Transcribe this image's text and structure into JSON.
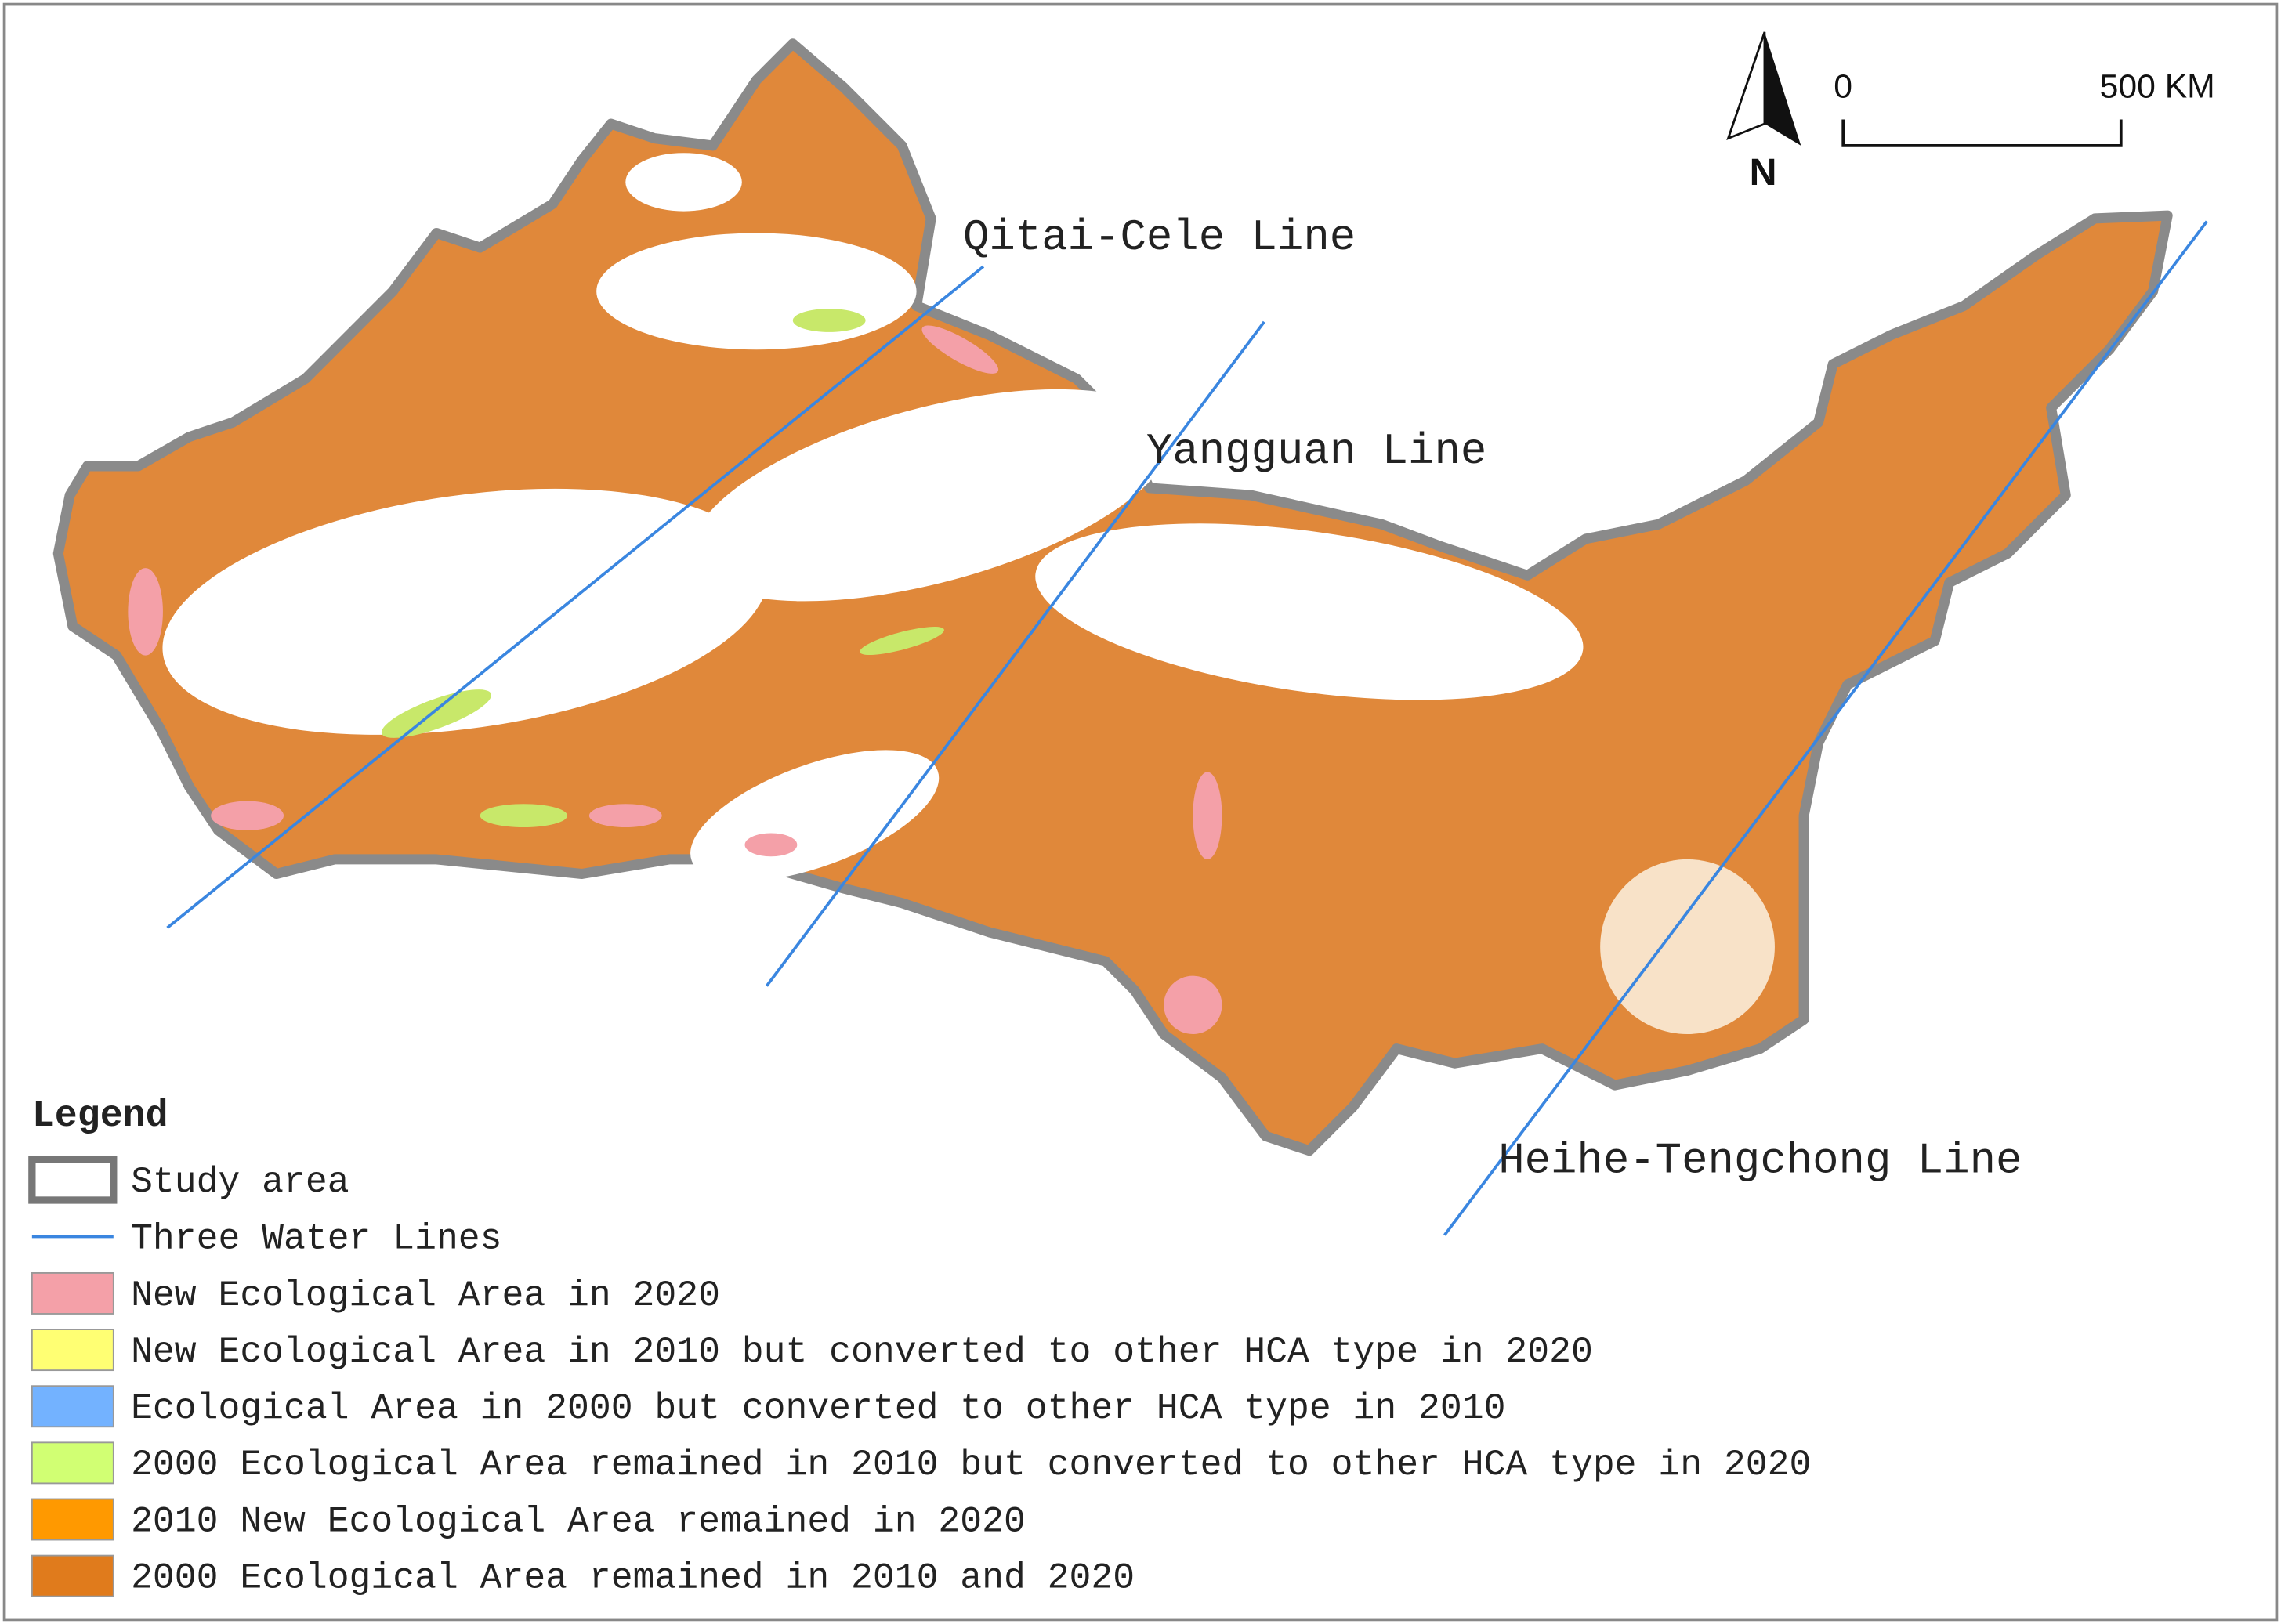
{
  "map": {
    "lines": [
      {
        "label": "Qitai-Cele Line"
      },
      {
        "label": "Yangguan Line"
      },
      {
        "label": "Heihe-Tengchong Line"
      }
    ],
    "north": "N",
    "scale": {
      "start": "0",
      "end": "500 KM"
    },
    "legend": {
      "title": "Legend",
      "study_area": "Study area",
      "water_lines": "Three Water Lines",
      "items": [
        {
          "label": "New Ecological Area in 2020",
          "color": "#f4a0a8"
        },
        {
          "label": "New Ecological Area in 2010 but converted to other HCA type in 2020",
          "color": "#ffff73"
        },
        {
          "label": "Ecological Area in 2000 but converted to other HCA type in 2010",
          "color": "#73b2ff"
        },
        {
          "label": "2000 Ecological Area remained in 2010 but converted to other HCA type in 2020",
          "color": "#d1ff73"
        },
        {
          "label": "2010 New Ecological Area remained in 2020",
          "color": "#ff9900"
        },
        {
          "label": "2000 Ecological Area remained in 2010 and 2020",
          "color": "#e07b1c"
        }
      ]
    }
  }
}
